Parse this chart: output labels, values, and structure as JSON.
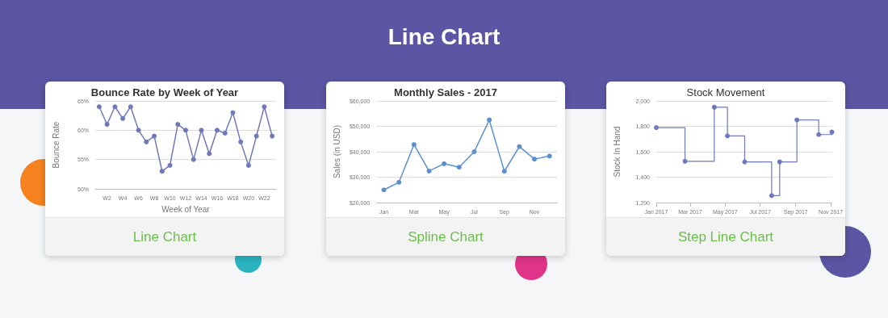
{
  "chart_data": [
    {
      "type": "other",
      "title": "Line Chart"
    },
    {
      "type": "line",
      "title": "Bounce Rate by Week of Year",
      "xlabel": "Week of Year",
      "ylabel": "Bounce Rate",
      "annotations": [
        "Line Chart"
      ],
      "categories": [
        null,
        "W2",
        null,
        "W4",
        null,
        "W6",
        null,
        "W8",
        null,
        "W10",
        null,
        "W12",
        null,
        "W14",
        null,
        "W16",
        null,
        "W18",
        null,
        "W20",
        null,
        "W22",
        null
      ],
      "series": [
        {
          "color": "#6f78b8",
          "values": [
            64,
            61,
            64,
            62,
            64,
            60,
            58,
            59,
            53,
            54,
            61,
            60,
            55,
            60,
            56,
            60,
            59.5,
            63,
            58,
            54,
            59,
            64,
            59
          ]
        }
      ],
      "ylim": [
        50,
        65
      ],
      "yticks": [
        {
          "value": 50,
          "label": "50%"
        },
        {
          "value": 55,
          "label": "55%"
        },
        {
          "value": 60,
          "label": "60%"
        },
        {
          "value": 65,
          "label": "65%"
        }
      ],
      "grid": "y",
      "marker": "circle",
      "line_style": "solid"
    },
    {
      "type": "line",
      "title": "Monthly Sales - 2017",
      "ylabel": "Sales (in USD)",
      "annotations": [
        "Spline Chart"
      ],
      "categories": [
        "Jan",
        null,
        "Mar",
        null,
        "May",
        null,
        "Jul",
        null,
        "Sep",
        null,
        "Nov",
        null
      ],
      "series": [
        {
          "color": "#5b8fd0",
          "values": [
            25000,
            28000,
            42800,
            32400,
            35300,
            33900,
            40000,
            52500,
            32300,
            42000,
            37100,
            38300
          ]
        }
      ],
      "ylim": [
        20000,
        60000
      ],
      "yticks": [
        {
          "value": 20000,
          "label": "$20,000"
        },
        {
          "value": 30000,
          "label": "$30,000"
        },
        {
          "value": 40000,
          "label": "$40,000"
        },
        {
          "value": 50000,
          "label": "$50,000"
        },
        {
          "value": 60000,
          "label": "$60,000"
        }
      ],
      "grid": "y",
      "marker": "circle",
      "line_style": "solid"
    },
    {
      "type": "step",
      "title": "Stock Movement",
      "ylabel": "Stock In Hand",
      "annotations": [
        "Step Line Chart"
      ],
      "x": [
        "2017-01-01",
        "2017-02-20",
        "2017-04-12",
        "2017-05-05",
        "2017-06-04",
        "2017-07-21",
        "2017-08-04",
        "2017-09-03",
        "2017-10-11",
        "2017-11-03"
      ],
      "series": [
        {
          "color": "#6f78b8",
          "values": [
            1790,
            1525,
            1950,
            1725,
            1520,
            1255,
            1520,
            1850,
            1735,
            1755
          ]
        }
      ],
      "xlim": [
        "2017-01-01",
        "2017-11-03"
      ],
      "xticks": [
        {
          "value": "2017-01-01",
          "label": "Jan 2017"
        },
        {
          "value": "2017-03-01",
          "label": "Mar 2017"
        },
        {
          "value": "2017-05-01",
          "label": "May 2017"
        },
        {
          "value": "2017-07-01",
          "label": "Jul 2017"
        },
        {
          "value": "2017-09-01",
          "label": "Sep 2017"
        },
        {
          "value": "2017-11-01",
          "label": "Nov 2017"
        }
      ],
      "ylim": [
        1200,
        2000
      ],
      "yticks": [
        {
          "value": 1200,
          "label": "1,200"
        },
        {
          "value": 1400,
          "label": "1,400"
        },
        {
          "value": 1600,
          "label": "1,600"
        },
        {
          "value": 1800,
          "label": "1,800"
        },
        {
          "value": 2000,
          "label": "2,000"
        }
      ],
      "grid": "y",
      "marker": "circle",
      "line_style": "solid"
    }
  ]
}
